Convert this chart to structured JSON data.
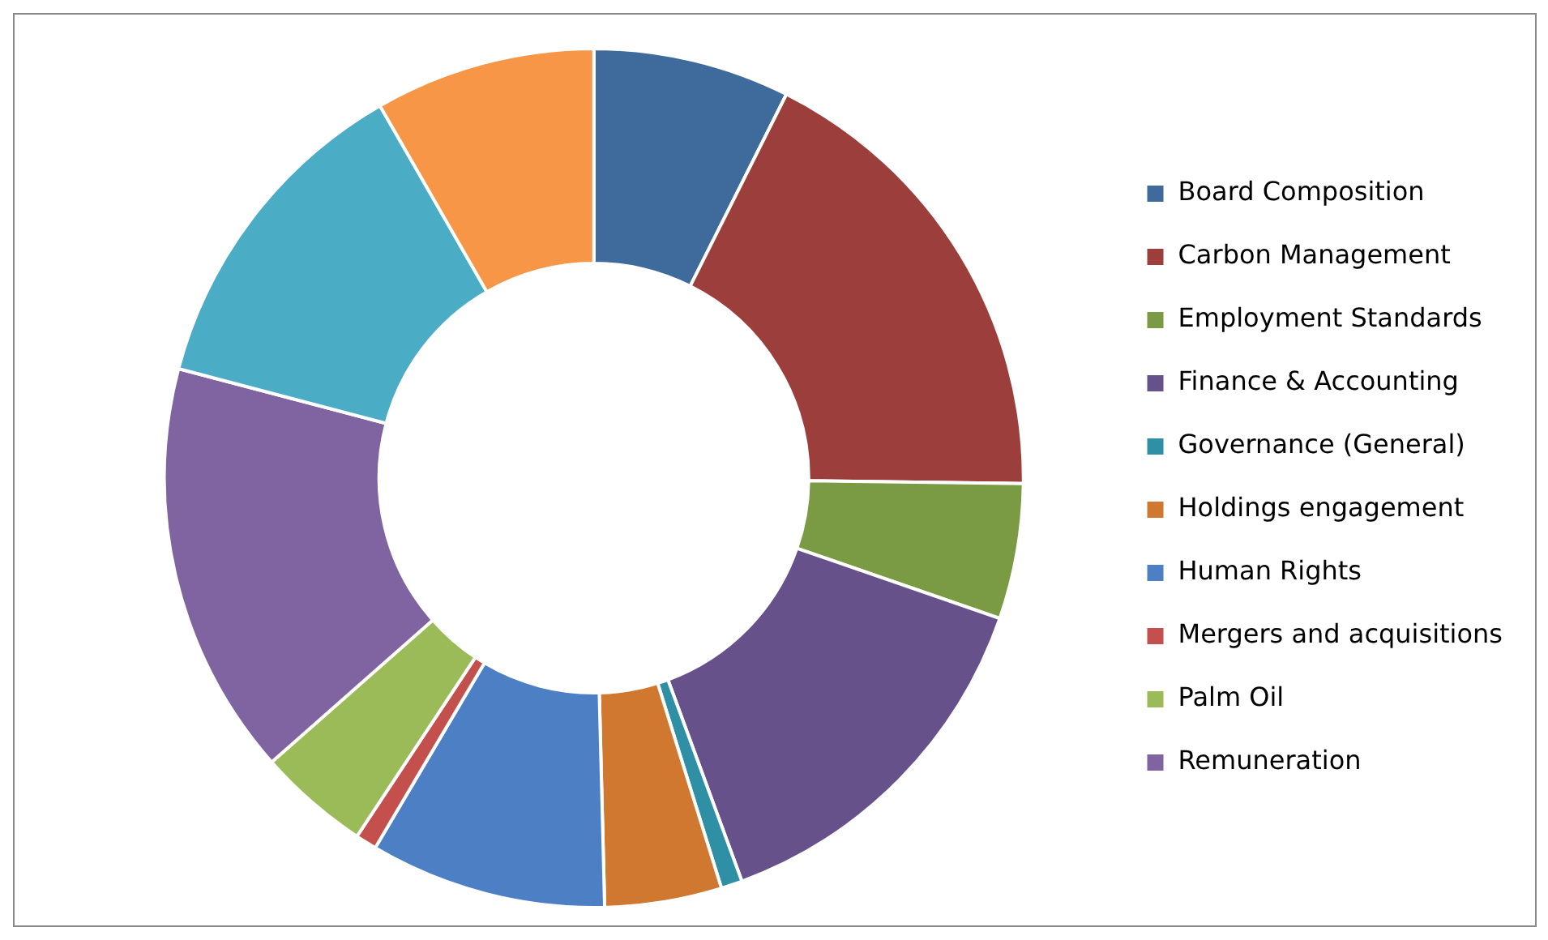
{
  "chart_data": {
    "type": "donut",
    "categories": [
      "Board Composition",
      "Carbon Management",
      "Employment Standards",
      "Finance & Accounting",
      "Governance (General)",
      "Holdings engagement",
      "Human Rights",
      "Mergers and acquisitions",
      "Palm Oil",
      "Remuneration",
      null,
      null
    ],
    "values": [
      7.4,
      17.8,
      5.1,
      14.1,
      0.8,
      4.4,
      8.9,
      0.8,
      4.2,
      15.6,
      12.6,
      8.3
    ],
    "colors": [
      "#3f6a9c",
      "#9c3f3c",
      "#7a9a44",
      "#66518a",
      "#2f8fa5",
      "#d0782f",
      "#4c7fc4",
      "#c4504d",
      "#9bbb59",
      "#8064a2",
      "#4bacc6",
      "#f79646"
    ],
    "legend": "right"
  }
}
